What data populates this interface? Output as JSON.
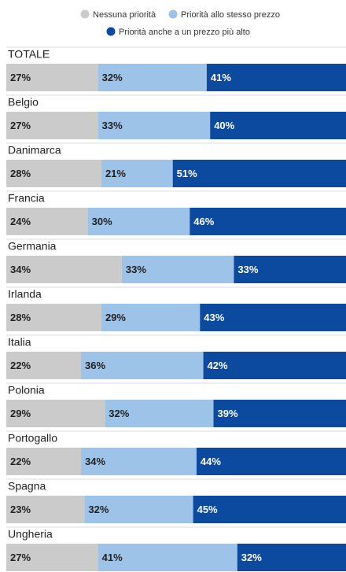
{
  "chart_data": {
    "type": "stacked-bar-horizontal",
    "categories": [
      "TOTALE",
      "Belgio",
      "Danimarca",
      "Francia",
      "Germania",
      "Irlanda",
      "Italia",
      "Polonia",
      "Portogallo",
      "Spagna",
      "Ungheria"
    ],
    "xlim": [
      0,
      100
    ],
    "series": [
      {
        "name": "Nessuna priorità",
        "color": "#cbcbcb",
        "values": [
          27,
          27,
          28,
          24,
          34,
          28,
          22,
          29,
          22,
          23,
          27
        ],
        "value_labels": [
          "27%",
          "27%",
          "28%",
          "24%",
          "34%",
          "28%",
          "22%",
          "29%",
          "22%",
          "23%",
          "27%"
        ]
      },
      {
        "name": "Priorità allo stesso prezzo",
        "color": "#9dc3e9",
        "values": [
          32,
          33,
          21,
          30,
          33,
          29,
          36,
          32,
          34,
          32,
          41
        ],
        "value_labels": [
          "32%",
          "33%",
          "21%",
          "30%",
          "33%",
          "29%",
          "36%",
          "32%",
          "34%",
          "32%",
          "41%"
        ]
      },
      {
        "name": "Priorità anche a un prezzo più alto",
        "color": "#0b4a9e",
        "values": [
          41,
          40,
          51,
          46,
          33,
          43,
          42,
          39,
          44,
          45,
          32
        ],
        "value_labels": [
          "41%",
          "40%",
          "51%",
          "46%",
          "33%",
          "43%",
          "42%",
          "39%",
          "44%",
          "45%",
          "32%"
        ]
      }
    ]
  }
}
